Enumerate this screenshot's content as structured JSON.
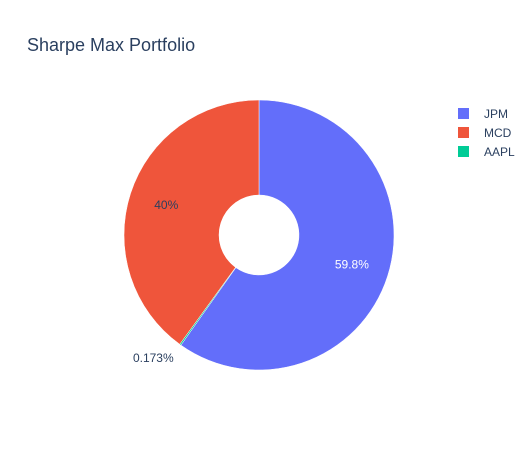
{
  "chart_data": {
    "type": "pie",
    "hole": true,
    "title": "Sharpe Max Portfolio",
    "legend_position": "top-right",
    "direction": "clockwise",
    "start_angle": "top",
    "slices": [
      {
        "name": "JPM",
        "value": 59.8,
        "label": "59.8%",
        "color": "#636efa",
        "label_position": "inside",
        "label_color": "#ffffff"
      },
      {
        "name": "AAPL",
        "value": 0.173,
        "label": "0.173%",
        "color": "#00cc96",
        "label_position": "outside",
        "label_color": "#2a3f5f"
      },
      {
        "name": "MCD",
        "value": 40,
        "label": "40%",
        "color": "#ef553b",
        "label_position": "inside",
        "label_color": "#2a3f5f"
      }
    ],
    "legend": [
      {
        "name": "JPM",
        "color": "#636efa"
      },
      {
        "name": "MCD",
        "color": "#ef553b"
      },
      {
        "name": "AAPL",
        "color": "#00cc96"
      }
    ]
  }
}
